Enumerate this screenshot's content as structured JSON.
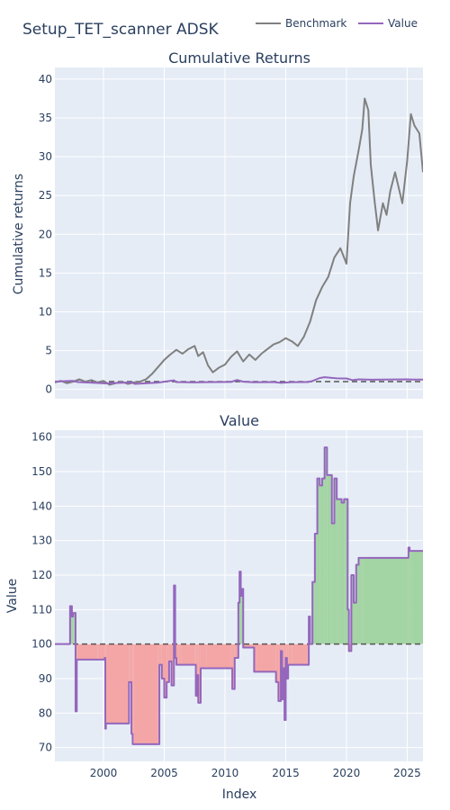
{
  "figure": {
    "title": "Setup_TET_scanner ADSK",
    "legend": [
      {
        "name": "Benchmark",
        "color": "#808080"
      },
      {
        "name": "Value",
        "color": "#9467bd"
      }
    ],
    "xlabel": "Index",
    "colors": {
      "plot_bg": "#e5ecf6",
      "grid": "#ffffff",
      "benchmark": "#808080",
      "value": "#9467bd",
      "gain_fill": "#a3d4a3",
      "loss_fill": "#f4a6a6",
      "baseline": "#555555"
    }
  },
  "chart_data": [
    {
      "type": "line",
      "title": "Cumulative Returns",
      "xlabel": "",
      "ylabel": "Cumulative returns",
      "xlim": [
        1996.0,
        2026.3
      ],
      "ylim": [
        -1.2,
        41.5
      ],
      "yticks": [
        0,
        5,
        10,
        15,
        20,
        25,
        30,
        35,
        40
      ],
      "baseline": 1,
      "series": [
        {
          "name": "Benchmark",
          "color": "#808080",
          "x": [
            1996.0,
            1996.5,
            1997.0,
            1997.5,
            1998.0,
            1998.5,
            1999.0,
            1999.5,
            2000.0,
            2000.5,
            2001.0,
            2001.5,
            2002.0,
            2002.5,
            2003.0,
            2003.5,
            2004.0,
            2004.5,
            2005.0,
            2005.5,
            2006.0,
            2006.5,
            2007.0,
            2007.5,
            2007.8,
            2008.2,
            2008.6,
            2009.0,
            2009.5,
            2010.0,
            2010.5,
            2011.0,
            2011.5,
            2012.0,
            2012.5,
            2013.0,
            2013.5,
            2014.0,
            2014.5,
            2015.0,
            2015.5,
            2016.0,
            2016.5,
            2017.0,
            2017.5,
            2018.0,
            2018.5,
            2019.0,
            2019.5,
            2020.0,
            2020.3,
            2020.6,
            2021.0,
            2021.3,
            2021.5,
            2021.8,
            2022.0,
            2022.3,
            2022.6,
            2023.0,
            2023.3,
            2023.6,
            2024.0,
            2024.3,
            2024.6,
            2025.0,
            2025.3,
            2025.6,
            2026.0,
            2026.3
          ],
          "values": [
            0.9,
            1.1,
            0.8,
            1.0,
            1.3,
            1.0,
            1.2,
            0.9,
            1.1,
            0.6,
            0.8,
            1.0,
            0.7,
            0.9,
            1.0,
            1.3,
            2.0,
            2.9,
            3.8,
            4.5,
            5.1,
            4.6,
            5.2,
            5.6,
            4.3,
            4.8,
            3.1,
            2.2,
            2.8,
            3.2,
            4.2,
            4.9,
            3.6,
            4.5,
            3.8,
            4.6,
            5.2,
            5.8,
            6.1,
            6.6,
            6.2,
            5.6,
            6.8,
            8.7,
            11.5,
            13.2,
            14.5,
            17.0,
            18.2,
            16.2,
            24.0,
            27.5,
            30.8,
            33.5,
            37.5,
            36.0,
            29.0,
            24.5,
            20.5,
            24.0,
            22.5,
            25.5,
            28.0,
            26.0,
            24.0,
            29.5,
            35.5,
            34.0,
            33.0,
            28.0
          ]
        },
        {
          "name": "Value",
          "color": "#9467bd",
          "x": [
            1996.0,
            1997.5,
            1997.9,
            2000.2,
            2002.3,
            2002.6,
            2004.5,
            2005.8,
            2006.0,
            2007.4,
            2008.5,
            2010.5,
            2011.0,
            2011.5,
            2012.4,
            2014.0,
            2014.6,
            2015.5,
            2016.8,
            2017.2,
            2017.8,
            2018.2,
            2018.8,
            2019.2,
            2020.0,
            2020.5,
            2021.0,
            2022.0,
            2025.0,
            2025.4,
            2026.3
          ],
          "values": [
            1.0,
            1.1,
            0.95,
            0.77,
            0.9,
            0.71,
            0.88,
            1.17,
            0.94,
            0.9,
            0.93,
            0.96,
            1.21,
            0.99,
            0.92,
            0.95,
            0.84,
            0.93,
            0.94,
            1.08,
            1.47,
            1.57,
            1.49,
            1.42,
            1.41,
            1.19,
            1.29,
            1.25,
            1.29,
            1.27,
            1.27
          ]
        }
      ]
    },
    {
      "type": "area",
      "title": "Value",
      "xlabel": "Index",
      "ylabel": "Value",
      "xlim": [
        1996.0,
        2026.3
      ],
      "ylim": [
        66,
        162
      ],
      "yticks": [
        70,
        80,
        90,
        100,
        110,
        120,
        130,
        140,
        150,
        160
      ],
      "xticks": [
        2000,
        2005,
        2010,
        2015,
        2020,
        2025
      ],
      "baseline": 100,
      "series": [
        {
          "name": "Value",
          "color": "#9467bd",
          "x": [
            1996.0,
            1997.2,
            1997.25,
            1997.4,
            1997.5,
            1997.6,
            1997.7,
            1997.8,
            1997.85,
            1998.0,
            1999.5,
            2000.0,
            2000.1,
            2000.15,
            2000.2,
            2002.0,
            2002.1,
            2002.2,
            2002.3,
            2002.4,
            2002.5,
            2004.5,
            2004.6,
            2004.8,
            2005.0,
            2005.2,
            2005.4,
            2005.6,
            2005.8,
            2005.9,
            2006.0,
            2006.2,
            2006.4,
            2007.0,
            2007.5,
            2007.6,
            2007.7,
            2007.8,
            2008.0,
            2008.5,
            2010.5,
            2010.6,
            2010.8,
            2011.0,
            2011.1,
            2011.2,
            2011.3,
            2011.4,
            2011.5,
            2011.7,
            2012.0,
            2012.2,
            2012.4,
            2012.6,
            2014.0,
            2014.2,
            2014.4,
            2014.6,
            2014.7,
            2014.8,
            2014.9,
            2015.0,
            2015.1,
            2015.2,
            2015.5,
            2016.8,
            2016.9,
            2017.0,
            2017.2,
            2017.4,
            2017.6,
            2017.8,
            2018.0,
            2018.2,
            2018.4,
            2018.6,
            2018.8,
            2019.0,
            2019.2,
            2019.4,
            2019.6,
            2019.8,
            2020.0,
            2020.1,
            2020.2,
            2020.4,
            2020.6,
            2020.8,
            2021.0,
            2021.2,
            2021.4,
            2025.0,
            2025.1,
            2025.2,
            2025.4,
            2026.3
          ],
          "values": [
            100,
            100,
            111,
            108,
            109,
            109,
            80.5,
            95.5,
            95.5,
            95.5,
            95.5,
            95.5,
            96,
            75.5,
            77,
            77,
            89,
            89,
            74,
            71,
            71,
            71,
            94,
            90,
            84.5,
            89,
            95,
            88,
            117,
            96,
            94,
            94,
            94,
            94,
            94,
            85,
            91,
            83,
            93,
            93,
            93,
            87,
            96,
            96,
            112,
            121,
            114,
            116,
            99,
            99,
            99,
            99,
            92,
            92,
            92,
            89,
            83.5,
            98,
            84,
            93,
            78,
            96,
            90,
            94,
            94,
            94,
            108,
            100,
            118,
            132,
            148,
            146,
            148,
            157,
            149,
            149,
            135,
            148,
            142,
            142,
            141,
            142,
            142,
            110,
            98,
            120,
            112,
            123,
            125,
            125,
            125,
            125,
            128,
            127,
            127,
            127
          ]
        }
      ]
    }
  ]
}
